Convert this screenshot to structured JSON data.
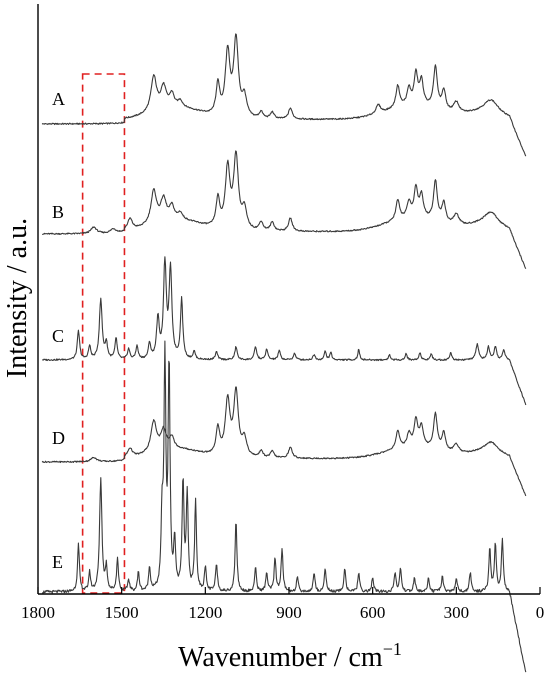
{
  "chart_data": {
    "type": "line",
    "title": "",
    "xlabel": "Wavenumber / cm",
    "xlabel_superscript": "−1",
    "ylabel": "Intensity / a.u.",
    "xlim": [
      1800,
      0
    ],
    "x_reversed": true,
    "x_ticks": [
      1800,
      1500,
      1200,
      900,
      600,
      300,
      0
    ],
    "x_tick_labels": [
      "1800",
      "1500",
      "1200",
      "900",
      "600",
      "300",
      "0"
    ],
    "y_ticks_shown": false,
    "grid": false,
    "highlight_box": {
      "x_range": [
        1640,
        1490
      ],
      "style": "dashed",
      "color": "#e02020"
    },
    "series": [
      {
        "name": "A",
        "baseline": 0.0,
        "end_x": 50,
        "region_break": 1490,
        "region_jump": 0.04,
        "peaks": [
          [
            1385,
            0.32,
            12
          ],
          [
            1350,
            0.2,
            12
          ],
          [
            1320,
            0.12,
            10
          ],
          [
            1290,
            0.06,
            10
          ],
          [
            1155,
            0.28,
            8
          ],
          [
            1120,
            0.58,
            10
          ],
          [
            1090,
            0.7,
            10
          ],
          [
            1060,
            0.18,
            10
          ],
          [
            1000,
            0.06,
            8
          ],
          [
            960,
            0.06,
            8
          ],
          [
            895,
            0.1,
            8
          ],
          [
            580,
            0.08,
            10
          ],
          [
            510,
            0.2,
            8
          ],
          [
            470,
            0.15,
            8
          ],
          [
            445,
            0.28,
            8
          ],
          [
            425,
            0.22,
            8
          ],
          [
            375,
            0.38,
            8
          ],
          [
            345,
            0.18,
            8
          ],
          [
            300,
            0.1,
            12
          ],
          [
            175,
            0.12,
            30
          ]
        ],
        "broad": [
          [
            1300,
            0.1,
            120
          ],
          [
            450,
            0.12,
            140
          ],
          [
            200,
            0.06,
            80
          ]
        ]
      },
      {
        "name": "B",
        "baseline": 0.0,
        "end_x": 50,
        "region_break": 1490,
        "region_jump": 0.02,
        "peaks": [
          [
            1600,
            0.06,
            12
          ],
          [
            1530,
            0.04,
            12
          ],
          [
            1470,
            0.1,
            10
          ],
          [
            1385,
            0.3,
            12
          ],
          [
            1350,
            0.2,
            12
          ],
          [
            1320,
            0.12,
            10
          ],
          [
            1290,
            0.06,
            10
          ],
          [
            1155,
            0.26,
            8
          ],
          [
            1120,
            0.55,
            10
          ],
          [
            1090,
            0.66,
            10
          ],
          [
            1060,
            0.18,
            10
          ],
          [
            1000,
            0.08,
            8
          ],
          [
            960,
            0.08,
            8
          ],
          [
            895,
            0.12,
            8
          ],
          [
            510,
            0.18,
            8
          ],
          [
            470,
            0.14,
            8
          ],
          [
            445,
            0.26,
            8
          ],
          [
            425,
            0.2,
            8
          ],
          [
            375,
            0.36,
            8
          ],
          [
            345,
            0.18,
            8
          ],
          [
            300,
            0.1,
            12
          ],
          [
            175,
            0.12,
            30
          ]
        ],
        "broad": [
          [
            1300,
            0.1,
            120
          ],
          [
            450,
            0.12,
            140
          ],
          [
            200,
            0.06,
            80
          ]
        ]
      },
      {
        "name": "C",
        "baseline": 0.0,
        "end_x": 50,
        "region_break": 1490,
        "region_jump": 0.0,
        "peaks": [
          [
            1655,
            0.22,
            5
          ],
          [
            1615,
            0.1,
            5
          ],
          [
            1575,
            0.46,
            6
          ],
          [
            1555,
            0.12,
            5
          ],
          [
            1520,
            0.16,
            5
          ],
          [
            1475,
            0.08,
            5
          ],
          [
            1445,
            0.1,
            5
          ],
          [
            1400,
            0.12,
            5
          ],
          [
            1370,
            0.3,
            6
          ],
          [
            1345,
            0.72,
            6
          ],
          [
            1325,
            0.68,
            6
          ],
          [
            1285,
            0.46,
            5
          ],
          [
            1240,
            0.06,
            5
          ],
          [
            1160,
            0.06,
            5
          ],
          [
            1090,
            0.1,
            5
          ],
          [
            1020,
            0.1,
            5
          ],
          [
            980,
            0.08,
            5
          ],
          [
            935,
            0.07,
            5
          ],
          [
            880,
            0.05,
            5
          ],
          [
            810,
            0.04,
            5
          ],
          [
            770,
            0.07,
            4
          ],
          [
            750,
            0.06,
            4
          ],
          [
            650,
            0.08,
            4
          ],
          [
            540,
            0.04,
            4
          ],
          [
            480,
            0.05,
            4
          ],
          [
            430,
            0.06,
            4
          ],
          [
            390,
            0.05,
            4
          ],
          [
            320,
            0.06,
            4
          ],
          [
            225,
            0.12,
            6
          ],
          [
            185,
            0.1,
            5
          ],
          [
            160,
            0.1,
            5
          ],
          [
            130,
            0.08,
            5
          ]
        ],
        "broad": []
      },
      {
        "name": "D",
        "baseline": 0.0,
        "end_x": 50,
        "region_break": 1490,
        "region_jump": 0.03,
        "peaks": [
          [
            1600,
            0.04,
            12
          ],
          [
            1470,
            0.08,
            10
          ],
          [
            1385,
            0.28,
            12
          ],
          [
            1350,
            0.18,
            12
          ],
          [
            1320,
            0.1,
            10
          ],
          [
            1155,
            0.24,
            8
          ],
          [
            1120,
            0.5,
            10
          ],
          [
            1090,
            0.58,
            10
          ],
          [
            1060,
            0.16,
            10
          ],
          [
            1000,
            0.06,
            8
          ],
          [
            960,
            0.06,
            8
          ],
          [
            895,
            0.1,
            8
          ],
          [
            510,
            0.16,
            8
          ],
          [
            470,
            0.12,
            8
          ],
          [
            445,
            0.24,
            8
          ],
          [
            425,
            0.18,
            8
          ],
          [
            375,
            0.32,
            8
          ],
          [
            345,
            0.16,
            8
          ],
          [
            300,
            0.08,
            12
          ],
          [
            175,
            0.1,
            30
          ]
        ],
        "broad": [
          [
            1300,
            0.08,
            120
          ],
          [
            450,
            0.1,
            140
          ],
          [
            200,
            0.05,
            80
          ]
        ]
      },
      {
        "name": "E",
        "baseline": 0.0,
        "end_x": 50,
        "region_break": 1490,
        "region_jump": 0.0,
        "peaks": [
          [
            1655,
            0.2,
            4
          ],
          [
            1615,
            0.08,
            4
          ],
          [
            1575,
            0.48,
            5
          ],
          [
            1555,
            0.1,
            4
          ],
          [
            1515,
            0.14,
            4
          ],
          [
            1475,
            0.05,
            4
          ],
          [
            1440,
            0.08,
            4
          ],
          [
            1400,
            0.1,
            4
          ],
          [
            1355,
            0.3,
            4
          ],
          [
            1345,
            0.95,
            4
          ],
          [
            1330,
            0.95,
            4
          ],
          [
            1310,
            0.2,
            4
          ],
          [
            1280,
            0.46,
            4
          ],
          [
            1265,
            0.4,
            4
          ],
          [
            1235,
            0.38,
            4
          ],
          [
            1200,
            0.1,
            4
          ],
          [
            1160,
            0.12,
            4
          ],
          [
            1090,
            0.3,
            4
          ],
          [
            1020,
            0.1,
            4
          ],
          [
            980,
            0.08,
            4
          ],
          [
            950,
            0.14,
            4
          ],
          [
            925,
            0.18,
            4
          ],
          [
            870,
            0.06,
            4
          ],
          [
            810,
            0.08,
            4
          ],
          [
            770,
            0.1,
            4
          ],
          [
            700,
            0.1,
            4
          ],
          [
            650,
            0.08,
            4
          ],
          [
            600,
            0.06,
            4
          ],
          [
            520,
            0.08,
            4
          ],
          [
            500,
            0.1,
            4
          ],
          [
            450,
            0.06,
            4
          ],
          [
            400,
            0.06,
            4
          ],
          [
            350,
            0.07,
            4
          ],
          [
            300,
            0.06,
            4
          ],
          [
            250,
            0.08,
            4
          ],
          [
            180,
            0.18,
            4
          ],
          [
            160,
            0.2,
            4
          ],
          [
            135,
            0.22,
            4
          ]
        ],
        "broad": []
      }
    ]
  }
}
